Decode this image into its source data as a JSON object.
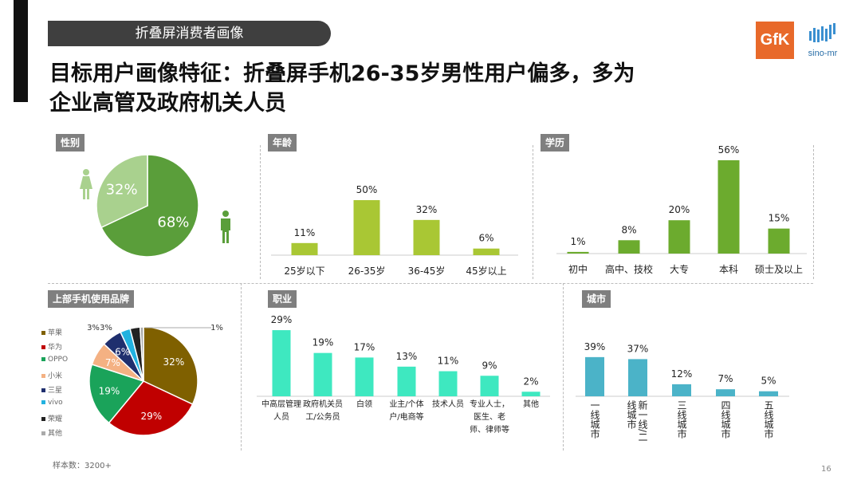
{
  "banner": "折叠屏消费者画像",
  "title_lines": [
    "目标用户画像特征：折叠屏手机26-35岁男性用户偏多，多为",
    "企业高管及政府机关人员"
  ],
  "logos": {
    "gfk": "GfK",
    "sino": "sino-mr"
  },
  "footer": {
    "sample": "样本数：3200+",
    "page": "16"
  },
  "icons": {
    "female": "female-person-icon",
    "male": "male-person-icon"
  },
  "chart_data": [
    {
      "id": "gender",
      "type": "pie",
      "title": "性别",
      "slices": [
        {
          "name": "男",
          "value": 68,
          "label": "68%",
          "color": "#5a9e3a"
        },
        {
          "name": "女",
          "value": 32,
          "label": "32%",
          "color": "#a9d18e"
        }
      ]
    },
    {
      "id": "age",
      "type": "bar",
      "title": "年龄",
      "categories": [
        "25岁以下",
        "26-35岁",
        "36-45岁",
        "45岁以上"
      ],
      "values": [
        11,
        50,
        32,
        6
      ],
      "labels": [
        "11%",
        "50%",
        "32%",
        "6%"
      ],
      "color": "#a9c734"
    },
    {
      "id": "edu",
      "type": "bar",
      "title": "学历",
      "categories": [
        "初中",
        "高中、技校",
        "大专",
        "本科",
        "硕士及以上"
      ],
      "values": [
        1,
        8,
        20,
        56,
        15
      ],
      "labels": [
        "1%",
        "8%",
        "20%",
        "56%",
        "15%"
      ],
      "color": "#6cab2e"
    },
    {
      "id": "brand",
      "type": "pie",
      "title": "上部手机使用品牌",
      "slices": [
        {
          "name": "苹果",
          "value": 32,
          "label": "32%",
          "color": "#7f6000"
        },
        {
          "name": "华为",
          "value": 29,
          "label": "29%",
          "color": "#c00000"
        },
        {
          "name": "OPPO",
          "value": 19,
          "label": "19%",
          "color": "#1aa35a"
        },
        {
          "name": "小米",
          "value": 7,
          "label": "7%",
          "color": "#f4b183"
        },
        {
          "name": "三星",
          "value": 6,
          "label": "6%",
          "color": "#1f2f6e"
        },
        {
          "name": "vivo",
          "value": 3,
          "label": "3%",
          "color": "#22b2e0"
        },
        {
          "name": "荣耀",
          "value": 3,
          "label": "3%",
          "color": "#222222"
        },
        {
          "name": "其他",
          "value": 1,
          "label": "1%",
          "color": "#aaaaaa"
        }
      ],
      "legend": "left"
    },
    {
      "id": "job",
      "type": "bar",
      "title": "职业",
      "categories": [
        "中高层管理人员",
        "政府机关员工/公务员",
        "白领",
        "业主/个体户/电商等",
        "技术人员",
        "专业人士，医生、老师、律师等",
        "其他"
      ],
      "values": [
        29,
        19,
        17,
        13,
        11,
        9,
        2
      ],
      "labels": [
        "29%",
        "19%",
        "17%",
        "13%",
        "11%",
        "9%",
        "2%"
      ],
      "color": "#3ee8c0"
    },
    {
      "id": "city",
      "type": "bar",
      "title": "城市",
      "categories": [
        "一线城市",
        "新一线/二线城市",
        "三线城市",
        "四线城市",
        "五线城市"
      ],
      "values": [
        39,
        37,
        12,
        7,
        5
      ],
      "labels": [
        "39%",
        "37%",
        "12%",
        "7%",
        "5%"
      ],
      "color": "#4bb3c8"
    }
  ]
}
